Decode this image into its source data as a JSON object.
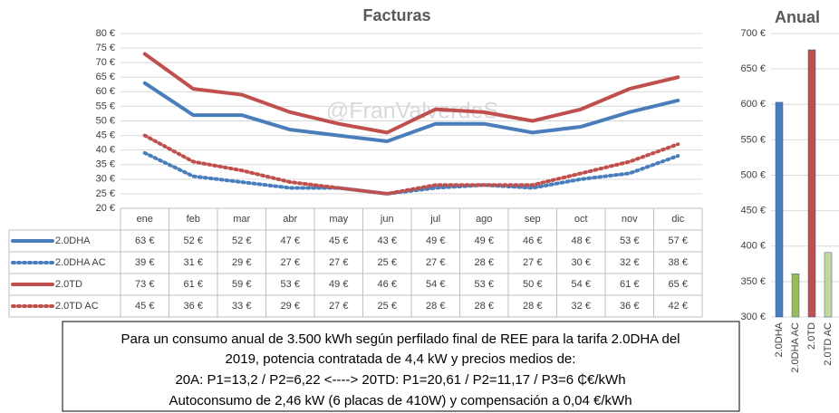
{
  "chart_data": [
    {
      "type": "line",
      "title": "Facturas",
      "categories": [
        "ene",
        "feb",
        "mar",
        "abr",
        "may",
        "jun",
        "jul",
        "ago",
        "sep",
        "oct",
        "nov",
        "dic"
      ],
      "series": [
        {
          "name": "2.0DHA",
          "color": "#4a7ebb",
          "line_style": "solid",
          "values": [
            63,
            52,
            52,
            47,
            45,
            43,
            49,
            49,
            46,
            48,
            53,
            57
          ],
          "value_labels": [
            "63 €",
            "52 €",
            "52 €",
            "47 €",
            "45 €",
            "43 €",
            "49 €",
            "49 €",
            "46 €",
            "48 €",
            "53 €",
            "57 €"
          ]
        },
        {
          "name": "2.0DHA AC",
          "color": "#4a7ebb",
          "line_style": "dotted",
          "values": [
            39,
            31,
            29,
            27,
            27,
            25,
            27,
            28,
            27,
            30,
            32,
            38
          ],
          "value_labels": [
            "39 €",
            "31 €",
            "29 €",
            "27 €",
            "27 €",
            "25 €",
            "27 €",
            "28 €",
            "27 €",
            "30 €",
            "32 €",
            "38 €"
          ]
        },
        {
          "name": "2.0TD",
          "color": "#c0504d",
          "line_style": "solid",
          "values": [
            73,
            61,
            59,
            53,
            49,
            46,
            54,
            53,
            50,
            54,
            61,
            65
          ],
          "value_labels": [
            "73 €",
            "61 €",
            "59 €",
            "53 €",
            "49 €",
            "46 €",
            "54 €",
            "53 €",
            "50 €",
            "54 €",
            "61 €",
            "65 €"
          ]
        },
        {
          "name": "2.0TD AC",
          "color": "#c0504d",
          "line_style": "dotted",
          "values": [
            45,
            36,
            33,
            29,
            27,
            25,
            28,
            28,
            28,
            32,
            36,
            42
          ],
          "value_labels": [
            "45 €",
            "36 €",
            "33 €",
            "29 €",
            "27 €",
            "25 €",
            "28 €",
            "28 €",
            "28 €",
            "32 €",
            "36 €",
            "42 €"
          ]
        }
      ],
      "ylim": [
        20,
        80
      ],
      "yticks": [
        {
          "value": 20,
          "label": "20 €"
        },
        {
          "value": 25,
          "label": "25 €"
        },
        {
          "value": 30,
          "label": "30 €"
        },
        {
          "value": 35,
          "label": "35 €"
        },
        {
          "value": 40,
          "label": "40 €"
        },
        {
          "value": 45,
          "label": "45 €"
        },
        {
          "value": 50,
          "label": "50 €"
        },
        {
          "value": 55,
          "label": "55 €"
        },
        {
          "value": 60,
          "label": "60 €"
        },
        {
          "value": 65,
          "label": "65 €"
        },
        {
          "value": 70,
          "label": "70 €"
        },
        {
          "value": 75,
          "label": "75 €"
        },
        {
          "value": 80,
          "label": "80 €"
        }
      ],
      "grid": true
    },
    {
      "type": "bar",
      "title": "Anual",
      "categories": [
        "2.0DHA",
        "2.0DHA AC",
        "2.0TD",
        "2.0TD AC"
      ],
      "values": [
        603,
        361,
        677,
        391
      ],
      "colors": [
        "#4a7ebb",
        "#9bbb59",
        "#c0504d",
        "#c3d69b"
      ],
      "ylim": [
        300,
        700
      ],
      "yticks": [
        {
          "value": 300,
          "label": "300 €"
        },
        {
          "value": 350,
          "label": "350 €"
        },
        {
          "value": 400,
          "label": "400 €"
        },
        {
          "value": 450,
          "label": "450 €"
        },
        {
          "value": 500,
          "label": "500 €"
        },
        {
          "value": 550,
          "label": "550 €"
        },
        {
          "value": 600,
          "label": "600 €"
        },
        {
          "value": 650,
          "label": "650 €"
        },
        {
          "value": 700,
          "label": "700 €"
        }
      ],
      "grid": true
    }
  ],
  "watermark": "@FranValverdeS",
  "note": [
    "Para un consumo anual de 3.500 kWh según perfilado final de REE para la tarifa 2.0DHA del",
    "2019, potencia contratada de 4,4 kW y precios medios de:",
    "20A: P1=13,2 / P2=6,22 <----> 20TD: P1=20,61 / P2=11,17 / P3=6  ₵€/kWh",
    "Autoconsumo de 2,46 kW (6 placas de 410W) y compensación a 0,04 €/kWh"
  ]
}
